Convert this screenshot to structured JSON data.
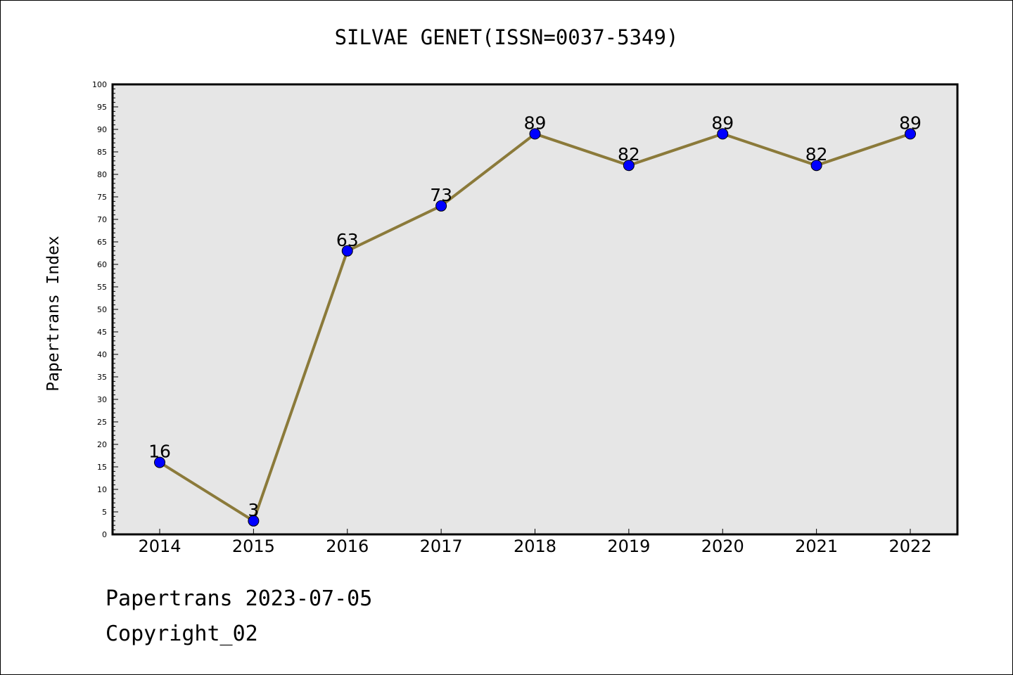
{
  "chart_data": {
    "type": "line",
    "title": "SILVAE GENET(ISSN=0037-5349)",
    "xlabel": "",
    "ylabel": "Papertrans Index",
    "categories": [
      "2014",
      "2015",
      "2016",
      "2017",
      "2018",
      "2019",
      "2020",
      "2021",
      "2022"
    ],
    "values": [
      16,
      3,
      63,
      73,
      89,
      82,
      89,
      82,
      89
    ],
    "data_labels": [
      "16",
      "3",
      "63",
      "73",
      "89",
      "82",
      "89",
      "82",
      "89"
    ],
    "ylim": [
      0,
      100
    ],
    "yticks": [
      "0",
      "5",
      "10",
      "15",
      "20",
      "25",
      "30",
      "35",
      "40",
      "45",
      "50",
      "55",
      "60",
      "65",
      "70",
      "75",
      "80",
      "85",
      "90",
      "95",
      "100"
    ],
    "legend": "none",
    "grid": false,
    "colors": {
      "line": "#8b7a3a",
      "marker": "#0000ff",
      "plot_background": "#e6e6e6"
    }
  },
  "footer": {
    "date_line": "Papertrans 2023-07-05",
    "copyright_line": "Copyright_02"
  }
}
